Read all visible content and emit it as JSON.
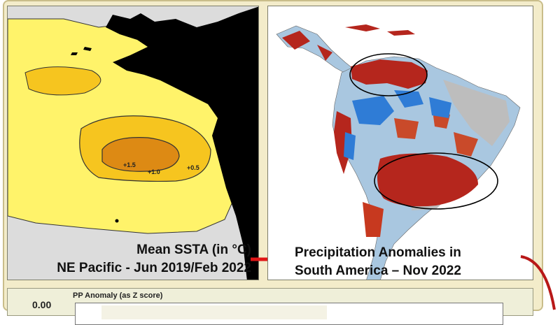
{
  "ssta_map": {
    "caption_line1": "Mean SSTA (in °C)",
    "caption_line2": "NE Pacific - Jun 2019/Feb 2022",
    "contour_labels": [
      "+1.5",
      "+1.0",
      "+0.5"
    ]
  },
  "precip_map": {
    "caption_line1": "Precipitation Anomalies in",
    "caption_line2": "South America – Nov 2022"
  },
  "bottom_chart": {
    "title": "PP Anomaly (as Z score)",
    "axis_value": "0.00"
  },
  "colors": {
    "frame_background": "#f3ecca",
    "warm_anomaly_light": "#fff36a",
    "warm_anomaly_mid": "#f6c51f",
    "warm_anomaly_strong": "#dd8a14",
    "land": "#000000",
    "precip_dry": "#b5261d",
    "precip_wet": "#2f7cd6",
    "arrow": "#e01616"
  }
}
